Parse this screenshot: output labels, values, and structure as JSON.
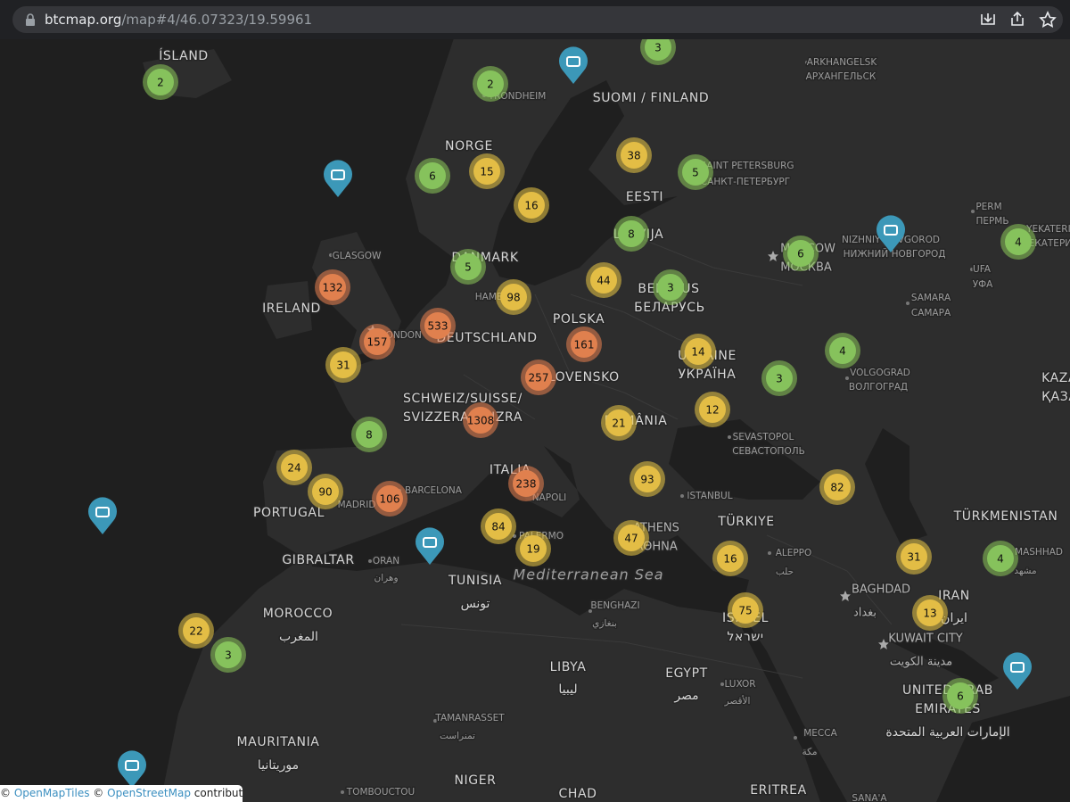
{
  "browser": {
    "url_host": "btcmap.org",
    "url_path": "/map#4/46.07323/19.59961"
  },
  "map": {
    "clusters": [
      2,
      2,
      3,
      6,
      15,
      38,
      5,
      16,
      8,
      5,
      98,
      44,
      3,
      6,
      4,
      132,
      533,
      157,
      161,
      14,
      4,
      31,
      257,
      3,
      12,
      1308,
      21,
      8,
      24,
      90,
      106,
      238,
      93,
      82,
      84,
      19,
      47,
      16,
      31,
      4,
      75,
      13,
      22,
      3,
      6
    ],
    "countries": [
      "ÍSLAND",
      "SUOMI / FINLAND",
      "NORGE",
      "EESTI",
      "LATVIJA",
      "DANMARK",
      "IRELAND",
      "BELARUS",
      "БЕЛАРУСЬ",
      "POLSKA",
      "DEUTSCHLAND",
      "UKRAINE",
      "УКРАЇНА",
      "SLOVENSKO",
      "SCHWEIZ/SUISSE/",
      "SVIZZERA/SVIZRA",
      "ROMÂNIA",
      "ITALIA",
      "PORTUGAL",
      "GIBRALTAR",
      "TÜRKIYE",
      "TÜRKMENISTAN",
      "TUNISIA",
      "تونس",
      "MOROCCO",
      "المغرب",
      "IRAN",
      "ايران",
      "ISRAEL",
      "ישראל",
      "LIBYA",
      "ليبيا",
      "EGYPT",
      "مصر",
      "UNITED ARAB",
      "EMIRATES",
      "الإمارات العربية المتحدة",
      "MAURITANIA",
      "موريتانيا",
      "NIGER",
      "CHAD",
      "ERITREA",
      "KAZAKHSTAN",
      "ҚАЗАҚСТАН"
    ],
    "capitals": [
      "MOSCOW",
      "МОСКВА",
      "ATHENS",
      "ΑΘΗΝΑ",
      "BAGHDAD",
      "بغداد",
      "KUWAIT CITY",
      "مدينة الكويت"
    ],
    "cities": [
      "ARKHANGELSK",
      "АРХАНГЕЛЬСК",
      "TRONDHEIM",
      "SAINT PETERSBURG",
      "САНКТ-ПЕТЕРБУРГ",
      "GLASGOW",
      "HAMBURG",
      "LONDON",
      "NIZHNIY NOVGOROD",
      "НИЖНИЙ НОВГОРОД",
      "PERM",
      "ПЕРМЬ",
      "YEKATERINBURG",
      "ЕКАТЕРИНБУРГ",
      "UFA",
      "УФА",
      "SAMARA",
      "САМАРА",
      "VOLGOGRAD",
      "ВОЛГОГРАД",
      "SEVASTOPOL",
      "СЕВАСТОПОЛЬ",
      "BARCELONA",
      "MADRID",
      "NAPOLI",
      "ISTANBUL",
      "PALERMO",
      "ORAN",
      "وهران",
      "ALEPPO",
      "حلب",
      "MASHHAD",
      "مشهد",
      "BENGHAZI",
      "بنغازي",
      "LUXOR",
      "الأقصر",
      "TAMANRASSET",
      "تمنراست",
      "MECCA",
      "مكة",
      "TOMBOUCTOU",
      "SANA'A"
    ],
    "sea": "Mediterranean Sea"
  },
  "attribution": [
    "©",
    "OpenMapTiles",
    "©",
    "OpenStreetMap",
    "contributors"
  ]
}
